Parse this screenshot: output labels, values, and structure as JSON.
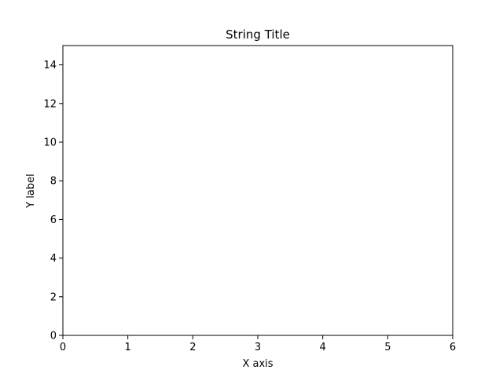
{
  "chart_data": {
    "type": "line",
    "title": "String Title",
    "xlabel": "X axis",
    "ylabel": "Y label",
    "xlim": [
      0,
      6
    ],
    "ylim": [
      0,
      15
    ],
    "x_ticks": [
      0,
      1,
      2,
      3,
      4,
      5,
      6
    ],
    "y_ticks": [
      0,
      2,
      4,
      6,
      8,
      10,
      12,
      14
    ],
    "grid": false,
    "series": []
  },
  "colors": {
    "axis": "#000000",
    "background": "#ffffff"
  }
}
